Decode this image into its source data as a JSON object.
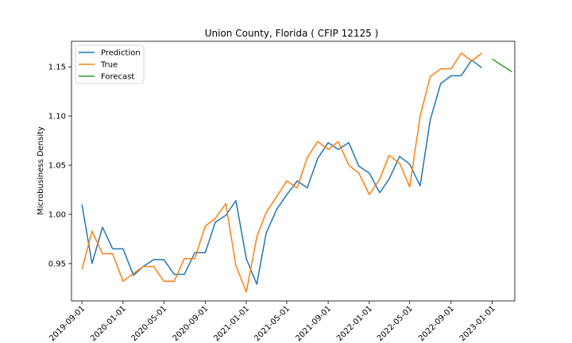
{
  "chart_data": {
    "type": "line",
    "title": "Union County, Florida ( CFIP 12125 )",
    "xlabel": "",
    "ylabel": "Microbusiness Density",
    "xlim": [
      "2019-08-01",
      "2023-03-09"
    ],
    "ylim": [
      0.912,
      1.176
    ],
    "x_ticks": [
      "2019-09-01",
      "2020-01-01",
      "2020-05-01",
      "2020-09-01",
      "2021-01-01",
      "2021-05-01",
      "2021-09-01",
      "2022-01-01",
      "2022-05-01",
      "2022-09-01",
      "2023-01-01"
    ],
    "y_ticks": [
      0.95,
      1.0,
      1.05,
      1.1,
      1.15
    ],
    "y_tick_labels": [
      "0.95",
      "1.00",
      "1.05",
      "1.10",
      "1.15"
    ],
    "grid": false,
    "legend": {
      "placement": "top-left",
      "entries": [
        "Prediction",
        "True",
        "Forecast"
      ]
    },
    "series": [
      {
        "name": "Prediction",
        "color": "#1f77b4",
        "x": [
          "2019-09-01",
          "2019-10-01",
          "2019-11-01",
          "2019-12-01",
          "2020-01-01",
          "2020-02-01",
          "2020-03-01",
          "2020-04-01",
          "2020-05-01",
          "2020-06-01",
          "2020-07-01",
          "2020-08-01",
          "2020-09-01",
          "2020-10-01",
          "2020-11-01",
          "2020-12-01",
          "2021-01-01",
          "2021-02-01",
          "2021-03-01",
          "2021-04-01",
          "2021-05-01",
          "2021-06-01",
          "2021-07-01",
          "2021-08-01",
          "2021-09-01",
          "2021-10-01",
          "2021-11-01",
          "2021-12-01",
          "2022-01-01",
          "2022-02-01",
          "2022-03-01",
          "2022-04-01",
          "2022-05-01",
          "2022-06-01",
          "2022-07-01",
          "2022-08-01",
          "2022-09-01",
          "2022-10-01",
          "2022-11-01",
          "2022-12-01"
        ],
        "values": [
          1.01,
          0.95,
          0.987,
          0.965,
          0.965,
          0.938,
          0.947,
          0.954,
          0.954,
          0.939,
          0.939,
          0.961,
          0.961,
          0.992,
          0.999,
          1.014,
          0.955,
          0.929,
          0.981,
          1.005,
          1.02,
          1.034,
          1.027,
          1.057,
          1.073,
          1.066,
          1.073,
          1.049,
          1.042,
          1.022,
          1.036,
          1.059,
          1.051,
          1.029,
          1.096,
          1.133,
          1.141,
          1.141,
          1.157,
          1.149
        ]
      },
      {
        "name": "True",
        "color": "#ff7f0e",
        "x": [
          "2019-09-01",
          "2019-10-01",
          "2019-11-01",
          "2019-12-01",
          "2020-01-01",
          "2020-02-01",
          "2020-03-01",
          "2020-04-01",
          "2020-05-01",
          "2020-06-01",
          "2020-07-01",
          "2020-08-01",
          "2020-09-01",
          "2020-10-01",
          "2020-11-01",
          "2020-12-01",
          "2021-01-01",
          "2021-02-01",
          "2021-03-01",
          "2021-04-01",
          "2021-05-01",
          "2021-06-01",
          "2021-07-01",
          "2021-08-01",
          "2021-09-01",
          "2021-10-01",
          "2021-11-01",
          "2021-12-01",
          "2022-01-01",
          "2022-02-01",
          "2022-03-01",
          "2022-04-01",
          "2022-05-01",
          "2022-06-01",
          "2022-07-01",
          "2022-08-01",
          "2022-09-01",
          "2022-10-01",
          "2022-11-01",
          "2022-12-01"
        ],
        "values": [
          0.944,
          0.983,
          0.96,
          0.96,
          0.932,
          0.94,
          0.947,
          0.947,
          0.932,
          0.932,
          0.955,
          0.955,
          0.988,
          0.996,
          1.011,
          0.948,
          0.921,
          0.977,
          1.002,
          1.018,
          1.034,
          1.027,
          1.058,
          1.074,
          1.066,
          1.074,
          1.05,
          1.042,
          1.02,
          1.036,
          1.06,
          1.052,
          1.028,
          1.1,
          1.14,
          1.148,
          1.148,
          1.164,
          1.156,
          1.164
        ]
      },
      {
        "name": "Forecast",
        "color": "#2ca02c",
        "x": [
          "2023-01-01",
          "2023-02-01",
          "2023-03-01"
        ],
        "values": [
          1.158,
          1.151,
          1.145
        ]
      }
    ]
  }
}
